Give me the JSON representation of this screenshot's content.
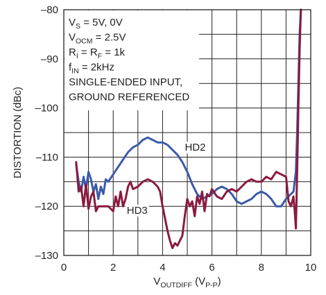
{
  "chart_data": {
    "type": "line",
    "title": "",
    "xlabel": {
      "main": "V",
      "sub": "OUTDIFF",
      "unit_open": " (V",
      "unit_sub": "P-P",
      "unit_close": ")"
    },
    "ylabel": "DISTORTION (dBc)",
    "xlim": [
      0,
      10
    ],
    "ylim": [
      -130,
      -80
    ],
    "x_ticks": [
      0,
      2,
      4,
      6,
      8,
      10
    ],
    "x_tick_labels": [
      "0",
      "2",
      "4",
      "6",
      "8",
      "10"
    ],
    "y_ticks": [
      -130,
      -120,
      -110,
      -100,
      -90,
      -80
    ],
    "y_tick_labels": [
      "–130",
      "–120",
      "–110",
      "–100",
      "–90",
      "–80"
    ],
    "x_minor_step": 1,
    "y_minor_step": 5,
    "grid": true,
    "annotations": [
      {
        "parts": [
          {
            "t": "V"
          },
          {
            "t": "S",
            "sub": true
          },
          {
            "t": " = 5V, 0V"
          }
        ]
      },
      {
        "parts": [
          {
            "t": "V"
          },
          {
            "t": "OCM",
            "sub": true
          },
          {
            "t": " = 2.5V"
          }
        ]
      },
      {
        "parts": [
          {
            "t": "R"
          },
          {
            "t": "I",
            "sub": true
          },
          {
            "t": " = R"
          },
          {
            "t": "F",
            "sub": true
          },
          {
            "t": " = 1k"
          }
        ]
      },
      {
        "parts": [
          {
            "t": "f"
          },
          {
            "t": "IN",
            "sub": true
          },
          {
            "t": " = 2kHz"
          }
        ]
      },
      {
        "parts": [
          {
            "t": "SINGLE-ENDED INPUT,"
          }
        ]
      },
      {
        "parts": [
          {
            "t": "GROUND REFERENCED"
          }
        ]
      }
    ],
    "series": [
      {
        "name": "HD2",
        "color": "#3a5ba9",
        "label_at": [
          4.9,
          -108
        ],
        "x": [
          0.5,
          0.6,
          0.7,
          0.8,
          0.9,
          1.0,
          1.1,
          1.2,
          1.3,
          1.4,
          1.5,
          1.6,
          1.7,
          1.8,
          2.0,
          2.2,
          2.4,
          2.6,
          2.8,
          3.0,
          3.2,
          3.4,
          3.6,
          3.8,
          4.0,
          4.2,
          4.4,
          4.6,
          4.8,
          5.0,
          5.2,
          5.4,
          5.6,
          5.8,
          6.0,
          6.2,
          6.4,
          6.6,
          6.8,
          7.0,
          7.2,
          7.4,
          7.6,
          7.8,
          8.0,
          8.2,
          8.4,
          8.6,
          8.8,
          9.0,
          9.1,
          9.2,
          9.3,
          9.4,
          9.45,
          9.5,
          9.55,
          9.6
        ],
        "y": [
          -111.5,
          -115,
          -117,
          -114,
          -116.5,
          -113,
          -114.5,
          -117,
          -115.5,
          -118.5,
          -116,
          -117.5,
          -114.5,
          -115,
          -113.5,
          -112,
          -110.5,
          -109,
          -108,
          -107.5,
          -106.5,
          -106,
          -106.5,
          -107,
          -107,
          -107.5,
          -108.5,
          -109.5,
          -111,
          -113,
          -115.5,
          -117.5,
          -118.5,
          -118,
          -117.5,
          -116.5,
          -116,
          -116.5,
          -117.5,
          -119,
          -119.5,
          -119,
          -118.5,
          -117.5,
          -117,
          -117.5,
          -118.5,
          -120,
          -120,
          -118.5,
          -118,
          -117.5,
          -117,
          -113,
          -105,
          -95,
          -85,
          -80
        ]
      },
      {
        "name": "HD3",
        "color": "#8b1a3e",
        "label_at": [
          2.55,
          -120.8
        ],
        "x": [
          0.5,
          0.6,
          0.7,
          0.8,
          0.9,
          1.0,
          1.1,
          1.2,
          1.3,
          1.4,
          1.6,
          1.8,
          2.0,
          2.1,
          2.2,
          2.3,
          2.4,
          2.5,
          2.6,
          2.7,
          2.8,
          3.0,
          3.2,
          3.4,
          3.6,
          3.8,
          3.9,
          4.0,
          4.1,
          4.2,
          4.3,
          4.4,
          4.5,
          4.6,
          4.7,
          4.8,
          4.9,
          5.0,
          5.1,
          5.2,
          5.3,
          5.4,
          5.5,
          5.6,
          5.7,
          5.8,
          5.9,
          6.0,
          6.2,
          6.4,
          6.6,
          6.8,
          7.0,
          7.2,
          7.4,
          7.6,
          7.8,
          8.0,
          8.2,
          8.4,
          8.6,
          8.8,
          9.0,
          9.1,
          9.2,
          9.3,
          9.35,
          9.4,
          9.45,
          9.5,
          9.55,
          9.6
        ],
        "y": [
          -111,
          -117,
          -116,
          -120,
          -115.5,
          -120.5,
          -118,
          -117,
          -121,
          -120,
          -120,
          -120,
          -121,
          -118,
          -120,
          -117,
          -120,
          -118.5,
          -116,
          -115,
          -116.5,
          -116,
          -115,
          -114.5,
          -115,
          -116,
          -117,
          -120,
          -122.5,
          -125,
          -127,
          -128.5,
          -127.5,
          -128,
          -127,
          -126,
          -122,
          -118.5,
          -120,
          -119,
          -122,
          -118,
          -119.5,
          -117,
          -121,
          -117.5,
          -118,
          -116.5,
          -118,
          -118.5,
          -117,
          -116.5,
          -117,
          -116,
          -115,
          -114.5,
          -115,
          -115,
          -114,
          -114.5,
          -113,
          -113.5,
          -114,
          -119,
          -120,
          -118,
          -121,
          -124.5,
          -113,
          -100,
          -88,
          -80
        ]
      }
    ]
  }
}
